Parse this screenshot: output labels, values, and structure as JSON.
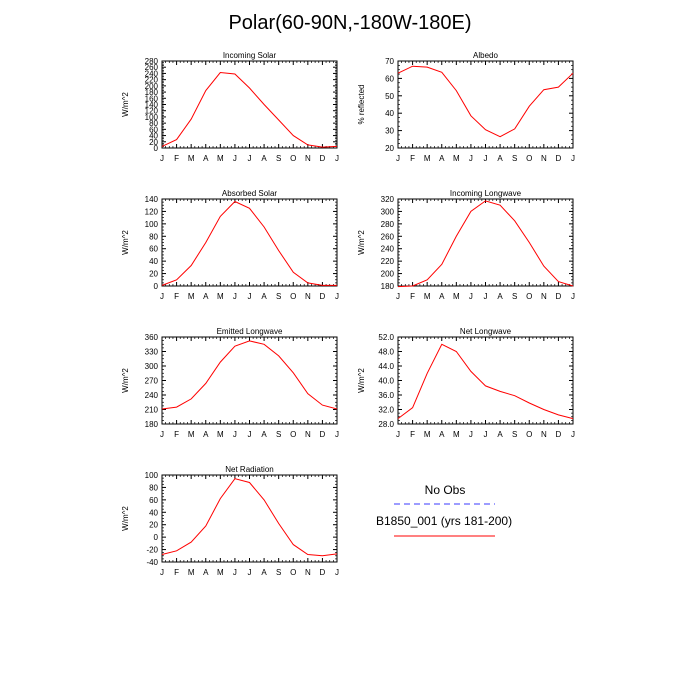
{
  "title": "Polar(60-90N,-180W-180E)",
  "legend": {
    "obs_label": "No Obs",
    "obs_color": "#3a3aff",
    "model_label": "B1850_001 (yrs 181-200)",
    "model_color": "#ff0000"
  },
  "chart_data": [
    {
      "type": "line",
      "title": "Incoming Solar",
      "xlabel": "",
      "ylabel": "W/m^2",
      "categories": [
        "J",
        "F",
        "M",
        "A",
        "M",
        "J",
        "J",
        "A",
        "S",
        "O",
        "N",
        "D",
        "J"
      ],
      "ylim": [
        0,
        280
      ],
      "yticks": [
        0,
        20,
        40,
        60,
        80,
        100,
        120,
        140,
        160,
        180,
        200,
        220,
        240,
        260,
        280
      ],
      "ytick_labels": [
        "0",
        "20",
        "40",
        "60",
        "80",
        "100",
        "120",
        "140",
        "160",
        "180",
        "200",
        "220",
        "240",
        "260",
        "280"
      ],
      "series": [
        {
          "name": "B1850_001 (yrs 181-200)",
          "values": [
            5,
            27,
            93,
            185,
            243,
            238,
            193,
            140,
            90,
            40,
            10,
            3,
            5
          ]
        }
      ]
    },
    {
      "type": "line",
      "title": "Albedo",
      "xlabel": "",
      "ylabel": "% reflected",
      "categories": [
        "J",
        "F",
        "M",
        "A",
        "M",
        "J",
        "J",
        "A",
        "S",
        "O",
        "N",
        "D",
        "J"
      ],
      "ylim": [
        20,
        70
      ],
      "yticks": [
        20,
        30,
        40,
        50,
        60,
        70
      ],
      "ytick_labels": [
        "20",
        "30",
        "40",
        "50",
        "60",
        "70"
      ],
      "series": [
        {
          "name": "B1850_001 (yrs 181-200)",
          "values": [
            63,
            67,
            66.5,
            63.5,
            53,
            38.5,
            30.5,
            26.5,
            31,
            44,
            53.5,
            55,
            63
          ]
        }
      ]
    },
    {
      "type": "line",
      "title": "Absorbed Solar",
      "xlabel": "",
      "ylabel": "W/m^2",
      "categories": [
        "J",
        "F",
        "M",
        "A",
        "M",
        "J",
        "J",
        "A",
        "S",
        "O",
        "N",
        "D",
        "J"
      ],
      "ylim": [
        0,
        140
      ],
      "yticks": [
        0,
        20,
        40,
        60,
        80,
        100,
        120,
        140
      ],
      "ytick_labels": [
        "0",
        "20",
        "40",
        "60",
        "80",
        "100",
        "120",
        "140"
      ],
      "series": [
        {
          "name": "B1850_001 (yrs 181-200)",
          "values": [
            1,
            10,
            33,
            70,
            112,
            136,
            125,
            95,
            57,
            22,
            5,
            1,
            1
          ]
        }
      ]
    },
    {
      "type": "line",
      "title": "Incoming Longwave",
      "xlabel": "",
      "ylabel": "W/m^2",
      "categories": [
        "J",
        "F",
        "M",
        "A",
        "M",
        "J",
        "J",
        "A",
        "S",
        "O",
        "N",
        "D",
        "J"
      ],
      "ylim": [
        180,
        320
      ],
      "yticks": [
        180,
        200,
        220,
        240,
        260,
        280,
        300,
        320
      ],
      "ytick_labels": [
        "180",
        "200",
        "220",
        "240",
        "260",
        "280",
        "300",
        "320"
      ],
      "series": [
        {
          "name": "B1850_001 (yrs 181-200)",
          "values": [
            179,
            180,
            190,
            215,
            260,
            300,
            317,
            310,
            285,
            250,
            212,
            187,
            180
          ]
        }
      ]
    },
    {
      "type": "line",
      "title": "Emitted Longwave",
      "xlabel": "",
      "ylabel": "W/m^2",
      "categories": [
        "J",
        "F",
        "M",
        "A",
        "M",
        "J",
        "J",
        "A",
        "S",
        "O",
        "N",
        "D",
        "J"
      ],
      "ylim": [
        180,
        360
      ],
      "yticks": [
        180,
        210,
        240,
        270,
        300,
        330,
        360
      ],
      "ytick_labels": [
        "180",
        "210",
        "240",
        "270",
        "300",
        "330",
        "360"
      ],
      "series": [
        {
          "name": "B1850_001 (yrs 181-200)",
          "values": [
            211,
            215,
            232,
            264,
            308,
            341,
            352,
            345,
            321,
            286,
            243,
            219,
            211
          ]
        }
      ]
    },
    {
      "type": "line",
      "title": "Net Longwave",
      "xlabel": "",
      "ylabel": "W/m^2",
      "categories": [
        "J",
        "F",
        "M",
        "A",
        "M",
        "J",
        "J",
        "A",
        "S",
        "O",
        "N",
        "D",
        "J"
      ],
      "ylim": [
        28,
        52
      ],
      "yticks": [
        28,
        32,
        36,
        40,
        44,
        48,
        52
      ],
      "ytick_labels": [
        "28.0",
        "32.0",
        "36.0",
        "40.0",
        "44.0",
        "48.0",
        "52.0"
      ],
      "series": [
        {
          "name": "B1850_001 (yrs 181-200)",
          "values": [
            29.5,
            32.5,
            42,
            50,
            48,
            42.5,
            38.5,
            37,
            35.8,
            33.8,
            32,
            30.5,
            29.5
          ]
        }
      ]
    },
    {
      "type": "line",
      "title": "Net Radiation",
      "xlabel": "",
      "ylabel": "W/m^2",
      "categories": [
        "J",
        "F",
        "M",
        "A",
        "M",
        "J",
        "J",
        "A",
        "S",
        "O",
        "N",
        "D",
        "J"
      ],
      "ylim": [
        -40,
        100
      ],
      "yticks": [
        -40,
        -20,
        0,
        20,
        40,
        60,
        80,
        100
      ],
      "ytick_labels": [
        "-40",
        "-20",
        "0",
        "20",
        "40",
        "60",
        "80",
        "100"
      ],
      "series": [
        {
          "name": "B1850_001 (yrs 181-200)",
          "values": [
            -28,
            -22,
            -8,
            18,
            62,
            94,
            88,
            60,
            22,
            -12,
            -28,
            -30,
            -27
          ]
        }
      ]
    }
  ]
}
